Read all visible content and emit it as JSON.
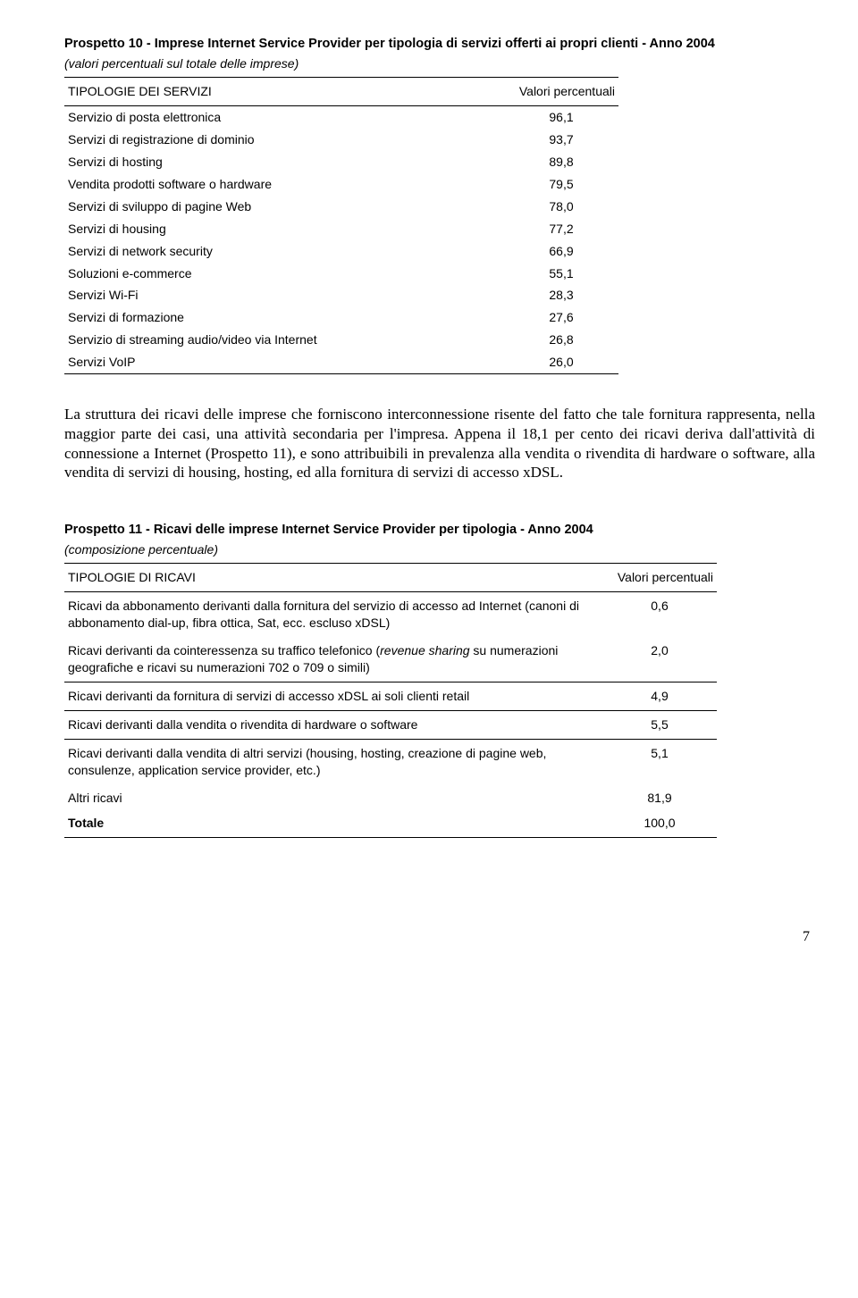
{
  "prospetto10": {
    "title": "Prospetto 10 - Imprese Internet Service Provider per tipologia di servizi offerti ai propri clienti - Anno 2004",
    "subtitle": "(valori percentuali sul totale delle imprese)",
    "header_left": "TIPOLOGIE DEI SERVIZI",
    "header_right": "Valori percentuali",
    "rows": [
      {
        "label": "Servizio di posta elettronica",
        "value": "96,1"
      },
      {
        "label": "Servizi di registrazione di dominio",
        "value": "93,7"
      },
      {
        "label": "Servizi di hosting",
        "value": "89,8"
      },
      {
        "label": "Vendita prodotti software o hardware",
        "value": "79,5"
      },
      {
        "label": "Servizi di sviluppo di pagine Web",
        "value": "78,0"
      },
      {
        "label": "Servizi di housing",
        "value": "77,2"
      },
      {
        "label": "Servizi di network security",
        "value": "66,9"
      },
      {
        "label": "Soluzioni e-commerce",
        "value": "55,1"
      },
      {
        "label": "Servizi Wi-Fi",
        "value": "28,3"
      },
      {
        "label": "Servizi di formazione",
        "value": "27,6"
      },
      {
        "label": "Servizio di streaming audio/video via Internet",
        "value": "26,8"
      },
      {
        "label": "Servizi VoIP",
        "value": "26,0"
      }
    ]
  },
  "body_paragraph": "La struttura dei ricavi delle imprese che forniscono interconnessione risente del fatto che tale fornitura rappresenta, nella maggior parte dei casi, una attività secondaria per l'impresa. Appena il 18,1 per cento dei ricavi deriva dall'attività di connessione a Internet (Prospetto 11), e sono attribuibili in prevalenza alla vendita o rivendita di hardware o software, alla vendita di servizi di housing, hosting, ed alla fornitura di servizi di accesso xDSL.",
  "prospetto11": {
    "title": "Prospetto 11 - Ricavi delle imprese Internet Service Provider per tipologia - Anno 2004",
    "subtitle": "(composizione percentuale)",
    "header_left": "TIPOLOGIE DI RICAVI",
    "header_right": "Valori percentuali",
    "groups": [
      {
        "rows": [
          {
            "label": "Ricavi da abbonamento derivanti dalla fornitura del servizio di accesso ad Internet (canoni di abbonamento dial-up, fibra ottica, Sat, ecc. escluso xDSL)",
            "value": "0,6"
          },
          {
            "label_html": "Ricavi derivanti da cointeressenza su traffico telefonico (<i>revenue sharing</i> su numerazioni geografiche e ricavi su numerazioni 702 o 709 o simili)",
            "value": "2,0"
          }
        ],
        "bottom_rule": true
      },
      {
        "rows": [
          {
            "label": "Ricavi derivanti da fornitura di servizi di accesso xDSL ai soli clienti retail",
            "value": "4,9"
          }
        ],
        "bottom_rule": true
      },
      {
        "rows": [
          {
            "label": "Ricavi derivanti dalla vendita o rivendita di hardware o software",
            "value": "5,5"
          }
        ],
        "bottom_rule": true
      },
      {
        "rows": [
          {
            "label": "Ricavi derivanti dalla vendita di altri servizi (housing, hosting, creazione di pagine web, consulenze, application service provider, etc.)",
            "value": "5,1"
          },
          {
            "label": "Altri ricavi",
            "value": "81,9"
          }
        ],
        "bottom_rule": false
      }
    ],
    "total_label": "Totale",
    "total_value": "100,0"
  },
  "page_number": "7"
}
